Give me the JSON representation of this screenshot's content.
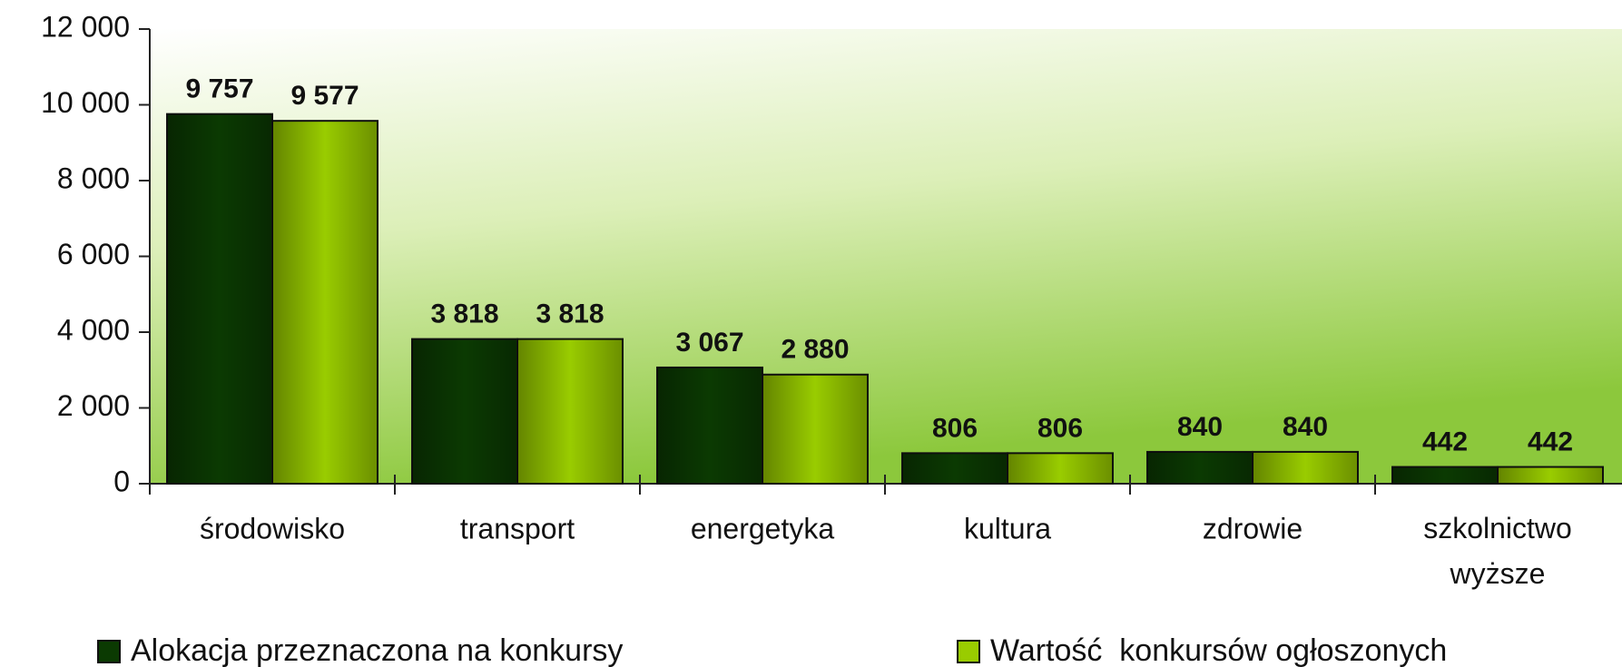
{
  "chart_data": {
    "type": "bar",
    "categories": [
      "środowisko",
      "transport",
      "energetyka",
      "kultura",
      "zdrowie",
      "szkolnictwo wyższe"
    ],
    "series": [
      {
        "name": "Alokacja przeznaczona na konkursy",
        "color": "#0b3a02",
        "values": [
          9757,
          3818,
          3067,
          806,
          840,
          442
        ],
        "value_labels": [
          "9 757",
          "3 818",
          "3 067",
          "806",
          "840",
          "442"
        ]
      },
      {
        "name": "Wartość  konkursów ogłoszonych",
        "color": "#99cc00",
        "values": [
          9577,
          3818,
          2880,
          806,
          840,
          442
        ],
        "value_labels": [
          "9 577",
          "3 818",
          "2 880",
          "806",
          "840",
          "442"
        ]
      }
    ],
    "ylim": [
      0,
      12000
    ],
    "yticks": [
      {
        "value": 0,
        "label": "0"
      },
      {
        "value": 2000,
        "label": "2 000"
      },
      {
        "value": 4000,
        "label": "4 000"
      },
      {
        "value": 6000,
        "label": "6 000"
      },
      {
        "value": 8000,
        "label": "8 000"
      },
      {
        "value": 10000,
        "label": "10 000"
      },
      {
        "value": 12000,
        "label": "12 000"
      }
    ],
    "legend": "bottom"
  }
}
